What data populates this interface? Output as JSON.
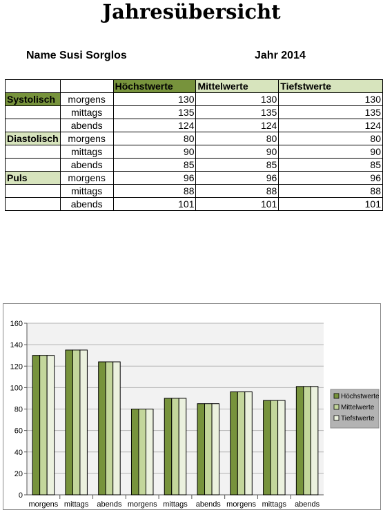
{
  "title": "Jahresübersicht",
  "meta": {
    "name_label": "Name Susi Sorglos",
    "year_label": "Jahr 2014"
  },
  "table": {
    "headers": [
      "Höchstwerte",
      "Mittelwerte",
      "Tiefstwerte"
    ],
    "groups": [
      {
        "label": "Systolisch",
        "rows": [
          {
            "time": "morgens",
            "values": [
              "130",
              "130",
              "130"
            ]
          },
          {
            "time": "mittags",
            "values": [
              "135",
              "135",
              "135"
            ]
          },
          {
            "time": "abends",
            "values": [
              "124",
              "124",
              "124"
            ]
          }
        ]
      },
      {
        "label": "Diastolisch",
        "rows": [
          {
            "time": "morgens",
            "values": [
              "80",
              "80",
              "80"
            ]
          },
          {
            "time": "mittags",
            "values": [
              "90",
              "90",
              "90"
            ]
          },
          {
            "time": "abends",
            "values": [
              "85",
              "85",
              "85"
            ]
          }
        ]
      },
      {
        "label": "Puls",
        "rows": [
          {
            "time": "morgens",
            "values": [
              "96",
              "96",
              "96"
            ]
          },
          {
            "time": "mittags",
            "values": [
              "88",
              "88",
              "88"
            ]
          },
          {
            "time": "abends",
            "values": [
              "101",
              "101",
              "101"
            ]
          }
        ]
      }
    ],
    "colors": {
      "header_dark": "#77933c",
      "header_light": "#d7e4bd"
    }
  },
  "chart_data": {
    "type": "bar",
    "categories": [
      "morgens",
      "mittags",
      "abends",
      "morgens",
      "mittags",
      "abends",
      "morgens",
      "mittags",
      "abends"
    ],
    "series": [
      {
        "name": "Höchstwerte",
        "color": "#77933c",
        "values": [
          130,
          135,
          124,
          80,
          90,
          85,
          96,
          88,
          101
        ]
      },
      {
        "name": "Mittelwerte",
        "color": "#c3d69b",
        "values": [
          130,
          135,
          124,
          80,
          90,
          85,
          96,
          88,
          101
        ]
      },
      {
        "name": "Tiefstwerte",
        "color": "#ebf1de",
        "values": [
          130,
          135,
          124,
          80,
          90,
          85,
          96,
          88,
          101
        ]
      }
    ],
    "ylim": [
      0,
      160
    ],
    "yticks": [
      0,
      20,
      40,
      60,
      80,
      100,
      120,
      140,
      160
    ],
    "grid": true,
    "legend": "right"
  }
}
